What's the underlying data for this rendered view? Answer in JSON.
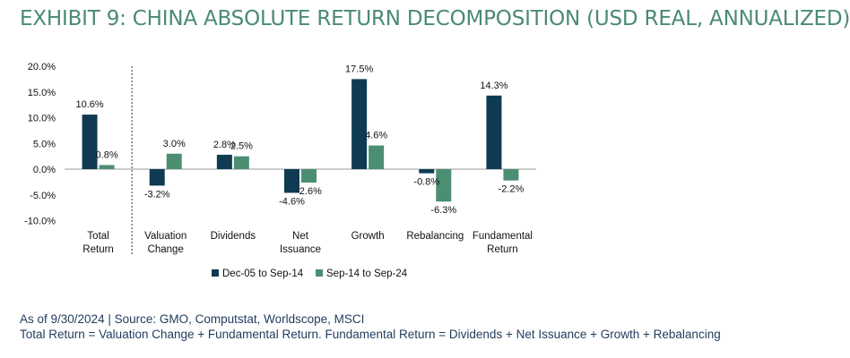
{
  "title": "EXHIBIT 9: CHINA ABSOLUTE RETURN DECOMPOSITION (USD REAL, ANNUALIZED)",
  "colors": {
    "title": "#4a8a74",
    "series1": "#0f3b52",
    "series2": "#4c8e72",
    "footer": "#1f3b5c"
  },
  "footer": {
    "source": "As of 9/30/2024 | Source: GMO, Computstat, Worldscope, MSCI",
    "note": "Total Return = Valuation Change + Fundamental Return. Fundamental Return = Dividends + Net Issuance + Growth + Rebalancing"
  },
  "chart_data": {
    "type": "bar",
    "categories": [
      [
        "Total",
        "Return"
      ],
      [
        "Valuation",
        "Change"
      ],
      [
        "Dividends"
      ],
      [
        "Net",
        "Issuance"
      ],
      [
        "Growth"
      ],
      [
        "Rebalancing"
      ],
      [
        "Fundamental",
        "Return"
      ]
    ],
    "series": [
      {
        "name": "Dec-05 to Sep-14",
        "values": [
          10.6,
          -3.2,
          2.8,
          -4.6,
          17.5,
          -0.8,
          14.3
        ],
        "labels": [
          "10.6%",
          "-3.2%",
          "2.8%",
          "-4.6%",
          "17.5%",
          "-0.8%",
          "14.3%"
        ]
      },
      {
        "name": "Sep-14 to Sep-24",
        "values": [
          0.8,
          3.0,
          2.5,
          -2.6,
          4.6,
          -6.3,
          -2.2
        ],
        "labels": [
          "0.8%",
          "3.0%",
          "2.5%",
          "-2.6%",
          "4.6%",
          "-6.3%",
          "-2.2%"
        ]
      }
    ],
    "yticks": [
      20,
      15,
      10,
      5,
      0,
      -5,
      -10
    ],
    "ytick_labels": [
      "20.0%",
      "15.0%",
      "10.0%",
      "5.0%",
      "0.0%",
      "-5.0%",
      "-10.0%"
    ],
    "ylim": [
      -10,
      20
    ],
    "legend_position": "bottom",
    "divider_after_category": "Total Return"
  }
}
